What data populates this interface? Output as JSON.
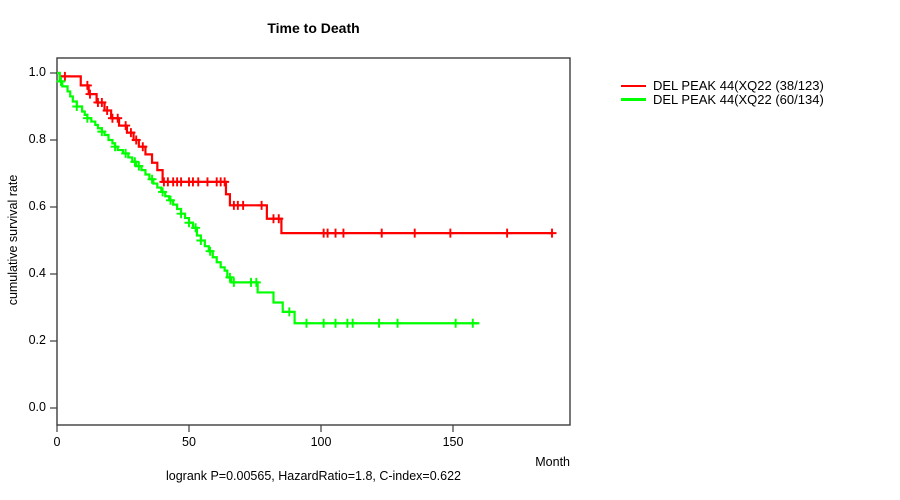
{
  "chart_data": {
    "type": "line",
    "subtype": "kaplan-meier-step",
    "title": "Time to Death",
    "xlabel": "Month",
    "ylabel": "cumulative survival rate",
    "caption": "logrank P=0.00565, HazardRatio=1.8, C-index=0.622",
    "stats": {
      "logrank_P": "0.00565",
      "HazardRatio": "1.8",
      "C_index": "0.622"
    },
    "xlim": [
      0,
      194
    ],
    "ylim": [
      0.0,
      1.0
    ],
    "grid": false,
    "legend_position": "right-outside",
    "axes": {
      "x": {
        "ticks": [
          0,
          50,
          100,
          150
        ]
      },
      "y": {
        "ticks": [
          "0.0",
          "0.2",
          "0.4",
          "0.6",
          "0.8",
          "1.0"
        ]
      }
    },
    "series": [
      {
        "name": "DEL PEAK 44(XQ22 (38/123)",
        "color": "#ff0000",
        "events": 38,
        "n": 123,
        "end_month": 188,
        "steps": [
          [
            0,
            1.0
          ],
          [
            1,
            0.99
          ],
          [
            9,
            0.963
          ],
          [
            12,
            0.937
          ],
          [
            15,
            0.912
          ],
          [
            18,
            0.888
          ],
          [
            20.5,
            0.865
          ],
          [
            23.5,
            0.843
          ],
          [
            26.5,
            0.822
          ],
          [
            29,
            0.8
          ],
          [
            31,
            0.78
          ],
          [
            33.5,
            0.757
          ],
          [
            36,
            0.732
          ],
          [
            38,
            0.71
          ],
          [
            40,
            0.675
          ],
          [
            64,
            0.638
          ],
          [
            65.5,
            0.605
          ],
          [
            79.5,
            0.565
          ],
          [
            85,
            0.522
          ]
        ],
        "censor_months": [
          3,
          11.5,
          12.5,
          15.5,
          17,
          19,
          21,
          23,
          26,
          28,
          30,
          32.5,
          40.5,
          42,
          44,
          45.5,
          47,
          50,
          51.5,
          53.5,
          57,
          60.5,
          62,
          63.5,
          67,
          68.5,
          70.5,
          77.5,
          82,
          84,
          101,
          102.5,
          105.5,
          108.5,
          123,
          135.5,
          149,
          170.5,
          187.5
        ]
      },
      {
        "name": "DEL PEAK 44(XQ22 (60/134)",
        "color": "#00ff00",
        "events": 60,
        "n": 134,
        "end_month": 160,
        "steps": [
          [
            0,
            1.0
          ],
          [
            1,
            0.975
          ],
          [
            2,
            0.96
          ],
          [
            4,
            0.945
          ],
          [
            5,
            0.93
          ],
          [
            6,
            0.915
          ],
          [
            7.5,
            0.9
          ],
          [
            9.5,
            0.885
          ],
          [
            10.5,
            0.875
          ],
          [
            11.5,
            0.865
          ],
          [
            13,
            0.855
          ],
          [
            14.5,
            0.845
          ],
          [
            15.5,
            0.835
          ],
          [
            17,
            0.825
          ],
          [
            18,
            0.815
          ],
          [
            19.5,
            0.8
          ],
          [
            21,
            0.79
          ],
          [
            22,
            0.78
          ],
          [
            23,
            0.77
          ],
          [
            25,
            0.76
          ],
          [
            27,
            0.748
          ],
          [
            28.5,
            0.735
          ],
          [
            30,
            0.722
          ],
          [
            32,
            0.71
          ],
          [
            33.5,
            0.697
          ],
          [
            35,
            0.683
          ],
          [
            36.5,
            0.67
          ],
          [
            38,
            0.658
          ],
          [
            39.5,
            0.645
          ],
          [
            41,
            0.632
          ],
          [
            42.5,
            0.62
          ],
          [
            44,
            0.607
          ],
          [
            45.5,
            0.594
          ],
          [
            47,
            0.58
          ],
          [
            48.5,
            0.567
          ],
          [
            50,
            0.553
          ],
          [
            51.5,
            0.538
          ],
          [
            53,
            0.515
          ],
          [
            54.5,
            0.5
          ],
          [
            56,
            0.483
          ],
          [
            57.5,
            0.468
          ],
          [
            59,
            0.45
          ],
          [
            60.5,
            0.435
          ],
          [
            62,
            0.42
          ],
          [
            63.5,
            0.41
          ],
          [
            64.5,
            0.39
          ],
          [
            66,
            0.375
          ],
          [
            76,
            0.345
          ],
          [
            82,
            0.315
          ],
          [
            85.5,
            0.287
          ],
          [
            90,
            0.253
          ]
        ],
        "censor_months": [
          1.5,
          7.5,
          11.5,
          17,
          22,
          26,
          29.5,
          31,
          36,
          40,
          43,
          47,
          50,
          52.5,
          54.5,
          58,
          65.5,
          67,
          73.5,
          75.5,
          88,
          94.5,
          101,
          105.5,
          110,
          112,
          122,
          129,
          151,
          157.5
        ]
      }
    ]
  }
}
